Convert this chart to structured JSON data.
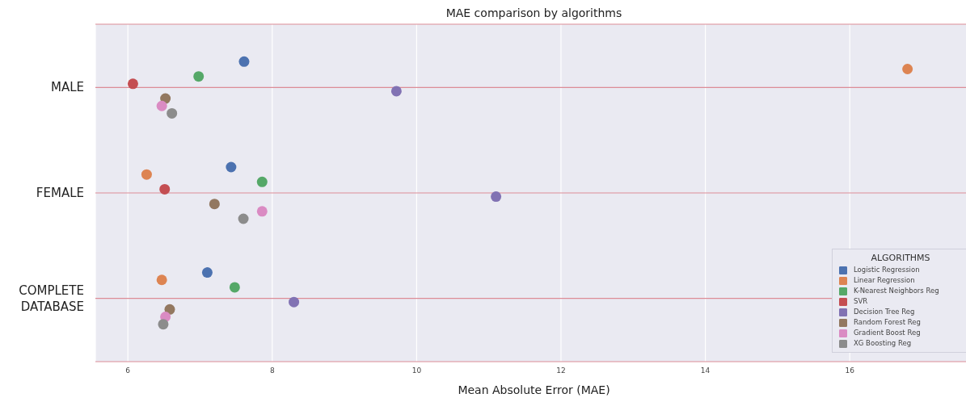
{
  "chart_data": {
    "type": "scatter",
    "orientation": "horizontal",
    "title": "MAE comparison by algorithms",
    "xlabel": "Mean Absolute Error (MAE)",
    "legend_title": "ALGORITHMS",
    "legend": "bottom right",
    "grid": true,
    "marker": "circle",
    "categories": [
      "MALE",
      "FEMALE",
      "COMPLETE DATABASE"
    ],
    "xlim": [
      5.55,
      17.7
    ],
    "xticks": [
      6,
      8,
      10,
      12,
      14,
      16
    ],
    "series": [
      {
        "name": "Logistic Regression",
        "color": "#4c72b0",
        "values": [
          7.61,
          7.43,
          7.1
        ]
      },
      {
        "name": "Linear Regression",
        "color": "#dd8452",
        "values": [
          16.8,
          6.26,
          6.47
        ]
      },
      {
        "name": "K-Nearest Neighbors Reg",
        "color": "#55a868",
        "values": [
          6.98,
          7.86,
          7.48
        ]
      },
      {
        "name": "SVR",
        "color": "#c44e52",
        "values": [
          6.07,
          6.51,
          null
        ]
      },
      {
        "name": "Decision Tree Reg",
        "color": "#8172b3",
        "values": [
          9.72,
          11.1,
          8.3
        ]
      },
      {
        "name": "Random Forest Reg",
        "color": "#937860",
        "values": [
          6.52,
          7.2,
          6.58
        ]
      },
      {
        "name": "Gradient Boost Reg",
        "color": "#da8bc3",
        "values": [
          6.47,
          7.86,
          6.52
        ]
      },
      {
        "name": "XG Boosting Reg",
        "color": "#8c8c8c",
        "values": [
          6.61,
          7.6,
          6.49
        ]
      }
    ]
  }
}
